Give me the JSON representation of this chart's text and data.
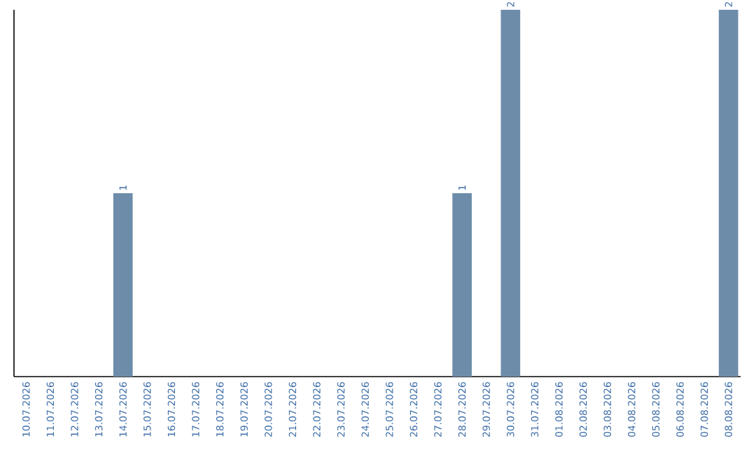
{
  "chart_data": {
    "type": "bar",
    "categories": [
      "10.07.2026",
      "11.07.2026",
      "12.07.2026",
      "13.07.2026",
      "14.07.2026",
      "15.07.2026",
      "16.07.2026",
      "17.07.2026",
      "18.07.2026",
      "19.07.2026",
      "20.07.2026",
      "21.07.2026",
      "22.07.2026",
      "23.07.2026",
      "24.07.2026",
      "25.07.2026",
      "26.07.2026",
      "27.07.2026",
      "28.07.2026",
      "29.07.2026",
      "30.07.2026",
      "31.07.2026",
      "01.08.2026",
      "02.08.2026",
      "03.08.2026",
      "04.08.2026",
      "05.08.2026",
      "06.08.2026",
      "07.08.2026",
      "08.08.2026"
    ],
    "values": [
      0,
      0,
      0,
      0,
      1,
      0,
      0,
      0,
      0,
      0,
      0,
      0,
      0,
      0,
      0,
      0,
      0,
      0,
      1,
      0,
      2,
      0,
      0,
      0,
      0,
      0,
      0,
      0,
      0,
      2
    ],
    "value_labels": [
      null,
      null,
      null,
      null,
      "1",
      null,
      null,
      null,
      null,
      null,
      null,
      null,
      null,
      null,
      null,
      null,
      null,
      null,
      "1",
      null,
      "2",
      null,
      null,
      null,
      null,
      null,
      null,
      null,
      null,
      "2"
    ],
    "color": "#6d8caa",
    "ylim": [
      0,
      2
    ]
  }
}
